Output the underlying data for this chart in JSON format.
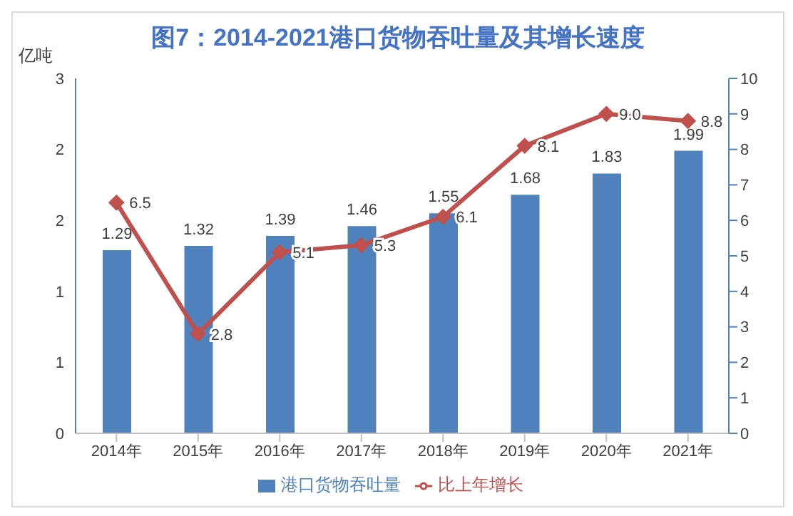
{
  "chart_data": {
    "type": "bar",
    "title": "图7：2014-2021港口货物吞吐量及其增长速度",
    "ylabel": "亿吨",
    "categories": [
      "2014年",
      "2015年",
      "2016年",
      "2017年",
      "2018年",
      "2019年",
      "2020年",
      "2021年"
    ],
    "series": [
      {
        "name": "港口货物吞吐量",
        "color": "#4f81bd",
        "values": [
          1.29,
          1.32,
          1.39,
          1.46,
          1.55,
          1.68,
          1.83,
          1.99
        ],
        "value_labels": [
          "1.29",
          "1.32",
          "1.39",
          "1.46",
          "1.55",
          "1.68",
          "1.83",
          "1.99"
        ]
      },
      {
        "name": "比上年增长",
        "type": "line",
        "axis": "y2",
        "color": "#c0504d",
        "values": [
          6.5,
          2.8,
          5.1,
          5.3,
          6.1,
          8.1,
          9.0,
          8.8
        ],
        "value_labels": [
          "6.5",
          "2.8",
          "5.1",
          "5.3",
          "6.1",
          "8.1",
          "9.0",
          "8.8"
        ]
      }
    ],
    "ylim": [
      0,
      2.5
    ],
    "yticks": [
      {
        "value": 0,
        "label": "0"
      },
      {
        "value": 0.5,
        "label": "1"
      },
      {
        "value": 1,
        "label": "1"
      },
      {
        "value": 1.5,
        "label": "2"
      },
      {
        "value": 2,
        "label": "2"
      },
      {
        "value": 2.5,
        "label": "3"
      }
    ],
    "y2lim": [
      0,
      10
    ],
    "y2ticks": [
      0,
      1,
      2,
      3,
      4,
      5,
      6,
      7,
      8,
      9,
      10
    ],
    "marker": "diamond",
    "grid": false,
    "legend": "bottom"
  }
}
